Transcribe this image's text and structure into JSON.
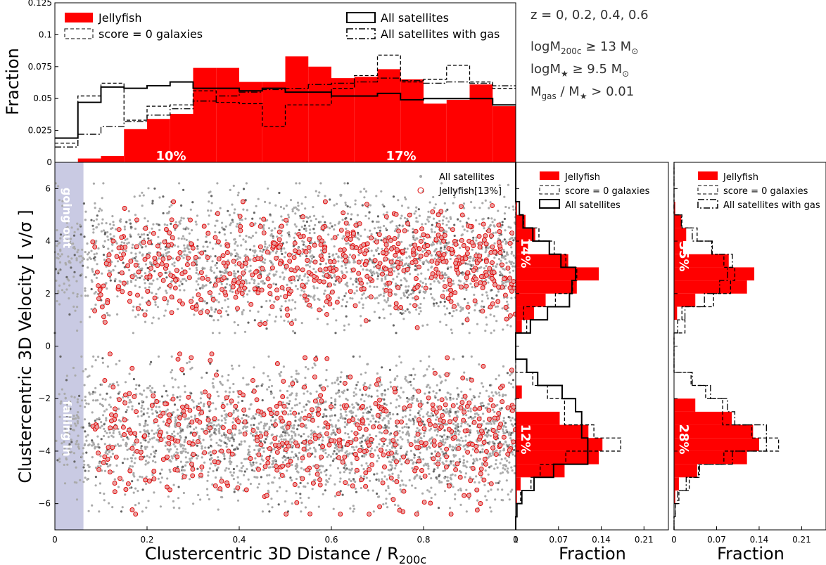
{
  "annotations": {
    "redshift": "z = 0, 0.2, 0.4, 0.6",
    "halo_mass": "logM",
    "halo_mass_sub": "200c",
    "halo_mass_rel": " ≥ 13 M",
    "halo_mass_unit_sub": "⊙",
    "stellar_mass": "logM",
    "stellar_mass_sub": "★",
    "stellar_mass_rel": " ≥ 9.5 M",
    "stellar_mass_unit_sub": "⊙",
    "gas_frac_1": "M",
    "gas_frac_1_sub": "gas",
    "gas_frac_2": " / M",
    "gas_frac_2_sub": "★",
    "gas_frac_3": " > 0.01"
  },
  "chart_data": [
    {
      "id": "top",
      "type": "histogram",
      "ylabel": "Fraction",
      "xlim": [
        0,
        1
      ],
      "ylim": [
        0,
        0.125
      ],
      "yticks": [
        "0",
        "0.025",
        "0.05",
        "0.075",
        "0.1",
        "0.125"
      ],
      "yticks_values": [
        0,
        0.025,
        0.05,
        0.075,
        0.1,
        0.125
      ],
      "bin_edges": [
        0.0,
        0.05,
        0.1,
        0.15,
        0.2,
        0.25,
        0.3,
        0.35,
        0.4,
        0.45,
        0.5,
        0.55,
        0.6,
        0.65,
        0.7,
        0.75,
        0.8,
        0.85,
        0.9,
        0.95,
        1.0
      ],
      "legend": [
        "Jellyfish",
        "score = 0 galaxies",
        "All satellites",
        "All satellites with gas"
      ],
      "labels_in_plot": [
        "10%",
        "17%"
      ],
      "series": [
        {
          "name": "Jellyfish",
          "style": "fill",
          "values": [
            0.0,
            0.003,
            0.005,
            0.026,
            0.034,
            0.038,
            0.074,
            0.074,
            0.063,
            0.063,
            0.083,
            0.075,
            0.066,
            0.067,
            0.073,
            0.065,
            0.046,
            0.049,
            0.061,
            0.044
          ]
        },
        {
          "name": "score = 0 galaxies",
          "style": "dashed",
          "values": [
            0.015,
            0.052,
            0.062,
            0.033,
            0.044,
            0.045,
            0.056,
            0.047,
            0.046,
            0.028,
            0.045,
            0.045,
            0.058,
            0.068,
            0.084,
            0.063,
            0.065,
            0.076,
            0.063,
            0.058
          ]
        },
        {
          "name": "All satellites",
          "style": "solid",
          "values": [
            0.019,
            0.047,
            0.059,
            0.058,
            0.06,
            0.063,
            0.058,
            0.058,
            0.056,
            0.058,
            0.055,
            0.055,
            0.052,
            0.052,
            0.054,
            0.049,
            0.05,
            0.05,
            0.05,
            0.045
          ]
        },
        {
          "name": "All satellites with gas",
          "style": "dashdot",
          "values": [
            0.012,
            0.022,
            0.028,
            0.032,
            0.037,
            0.042,
            0.048,
            0.052,
            0.055,
            0.057,
            0.058,
            0.061,
            0.062,
            0.063,
            0.066,
            0.064,
            0.062,
            0.063,
            0.062,
            0.06
          ]
        }
      ]
    },
    {
      "id": "scatter",
      "type": "scatter",
      "xlabel": "Clustercentric 3D Distance / R",
      "xlabel_sub": "200c",
      "ylabel": "Clustercentric 3D Velocity [ v/σ ]",
      "xlim": [
        0,
        1
      ],
      "ylim": [
        -7,
        7
      ],
      "xticks": [
        "0",
        "0.2",
        "0.4",
        "0.6",
        "0.8",
        "1"
      ],
      "xticks_values": [
        0,
        0.2,
        0.4,
        0.6,
        0.8,
        1.0
      ],
      "yticks": [
        "−6",
        "−4",
        "−2",
        "0",
        "2",
        "4",
        "6"
      ],
      "yticks_values": [
        -6,
        -4,
        -2,
        0,
        2,
        4,
        6
      ],
      "shaded_region_x": [
        0,
        0.062
      ],
      "region_labels": [
        "going out",
        "falling in"
      ],
      "legend": [
        "All satellites",
        "Jellyfish[13%]"
      ],
      "series": [
        {
          "name": "All satellites",
          "n_points_approx": 5000,
          "x_range": [
            0,
            1
          ],
          "y_upper": [
            0.5,
            6.2
          ],
          "y_lower": [
            -6.3,
            -0.4
          ],
          "density_weight_upper": 0.45
        },
        {
          "name": "Jellyfish[13%]",
          "n_points_approx": 1050,
          "x_range": [
            0.08,
            1
          ],
          "y_upper": [
            0.7,
            5.5
          ],
          "y_lower": [
            -6.4,
            -0.3
          ],
          "density_weight_upper": 0.52
        }
      ]
    },
    {
      "id": "right1",
      "type": "histogram_horizontal",
      "xlabel": "Fraction",
      "xlim": [
        0,
        0.25
      ],
      "xticks": [
        "0",
        "0.07",
        "0.14",
        "0.21"
      ],
      "xticks_values": [
        0,
        0.07,
        0.14,
        0.21
      ],
      "ylim": [
        -7,
        7
      ],
      "bin_edges": [
        -7,
        -6.5,
        -6,
        -5.5,
        -5,
        -4.5,
        -4,
        -3.5,
        -3,
        -2.5,
        -2,
        -1.5,
        -1,
        -0.5,
        0,
        0.5,
        1,
        1.5,
        2,
        2.5,
        3,
        3.5,
        4,
        4.5,
        5,
        5.5,
        6,
        6.5,
        7
      ],
      "legend": [
        "Jellyfish",
        "score = 0 galaxies",
        "All satellites"
      ],
      "labels_in_plot": [
        "14%",
        "12%"
      ],
      "series": [
        {
          "name": "Jellyfish",
          "style": "fill",
          "values": [
            0.0,
            0.0,
            0.002,
            0.008,
            0.08,
            0.136,
            0.142,
            0.119,
            0.072,
            0.0,
            0.01,
            0.0,
            0.0,
            0.0,
            0.0,
            0.01,
            0.03,
            0.049,
            0.1,
            0.136,
            0.086,
            0.02,
            0.032,
            0.016,
            0.002,
            0.0,
            0.0,
            0.0
          ]
        },
        {
          "name": "score = 0 galaxies",
          "style": "dashed",
          "values": [
            0.0,
            0.002,
            0.008,
            0.025,
            0.04,
            0.082,
            0.172,
            0.128,
            0.08,
            0.08,
            0.052,
            0.028,
            0.0,
            0.0,
            0.0,
            0.018,
            0.013,
            0.065,
            0.093,
            0.1,
            0.082,
            0.063,
            0.038,
            0.013,
            0.0,
            0.0,
            0.0,
            0.0
          ]
        },
        {
          "name": "All satellites",
          "style": "solid",
          "values": [
            0.0,
            0.002,
            0.01,
            0.03,
            0.062,
            0.118,
            0.118,
            0.108,
            0.108,
            0.098,
            0.076,
            0.036,
            0.018,
            0.0,
            0.0,
            0.024,
            0.052,
            0.088,
            0.092,
            0.098,
            0.074,
            0.055,
            0.028,
            0.012,
            0.006,
            0.0,
            0.0,
            0.0
          ]
        }
      ]
    },
    {
      "id": "right2",
      "type": "histogram_horizontal",
      "xlabel": "Fraction",
      "xlim": [
        0,
        0.25
      ],
      "xticks": [
        "0",
        "0.07",
        "0.14",
        "0.21"
      ],
      "xticks_values": [
        0,
        0.07,
        0.14,
        0.21
      ],
      "ylim": [
        -7,
        7
      ],
      "bin_edges": [
        -7,
        -6.5,
        -6,
        -5.5,
        -5,
        -4.5,
        -4,
        -3.5,
        -3,
        -2.5,
        -2,
        -1.5,
        -1,
        -0.5,
        0,
        0.5,
        1,
        1.5,
        2,
        2.5,
        3,
        3.5,
        4,
        4.5,
        5,
        5.5,
        6,
        6.5,
        7
      ],
      "legend": [
        "Jellyfish",
        "score = 0 galaxies",
        "All satellites with gas"
      ],
      "labels_in_plot": [
        "35%",
        "28%"
      ],
      "series": [
        {
          "name": "Jellyfish",
          "style": "fill",
          "values": [
            0.0,
            0.0,
            0.002,
            0.008,
            0.038,
            0.12,
            0.14,
            0.13,
            0.095,
            0.035,
            0.0,
            0.0,
            0.0,
            0.0,
            0.0,
            0.0,
            0.005,
            0.035,
            0.12,
            0.132,
            0.09,
            0.015,
            0.02,
            0.012,
            0.002,
            0.0,
            0.0,
            0.0
          ]
        },
        {
          "name": "score = 0 galaxies",
          "style": "dashed",
          "values": [
            0.0,
            0.002,
            0.008,
            0.025,
            0.04,
            0.082,
            0.172,
            0.128,
            0.08,
            0.08,
            0.052,
            0.028,
            0.0,
            0.0,
            0.0,
            0.018,
            0.013,
            0.065,
            0.093,
            0.1,
            0.082,
            0.063,
            0.038,
            0.013,
            0.0,
            0.0,
            0.0,
            0.0
          ]
        },
        {
          "name": "All satellites with gas",
          "style": "dashdot",
          "values": [
            0.0,
            0.002,
            0.006,
            0.02,
            0.042,
            0.096,
            0.152,
            0.152,
            0.1,
            0.088,
            0.06,
            0.03,
            0.0,
            0.0,
            0.0,
            0.006,
            0.018,
            0.05,
            0.075,
            0.088,
            0.096,
            0.062,
            0.03,
            0.012,
            0.0,
            0.0,
            0.0,
            0.0
          ]
        }
      ]
    }
  ]
}
